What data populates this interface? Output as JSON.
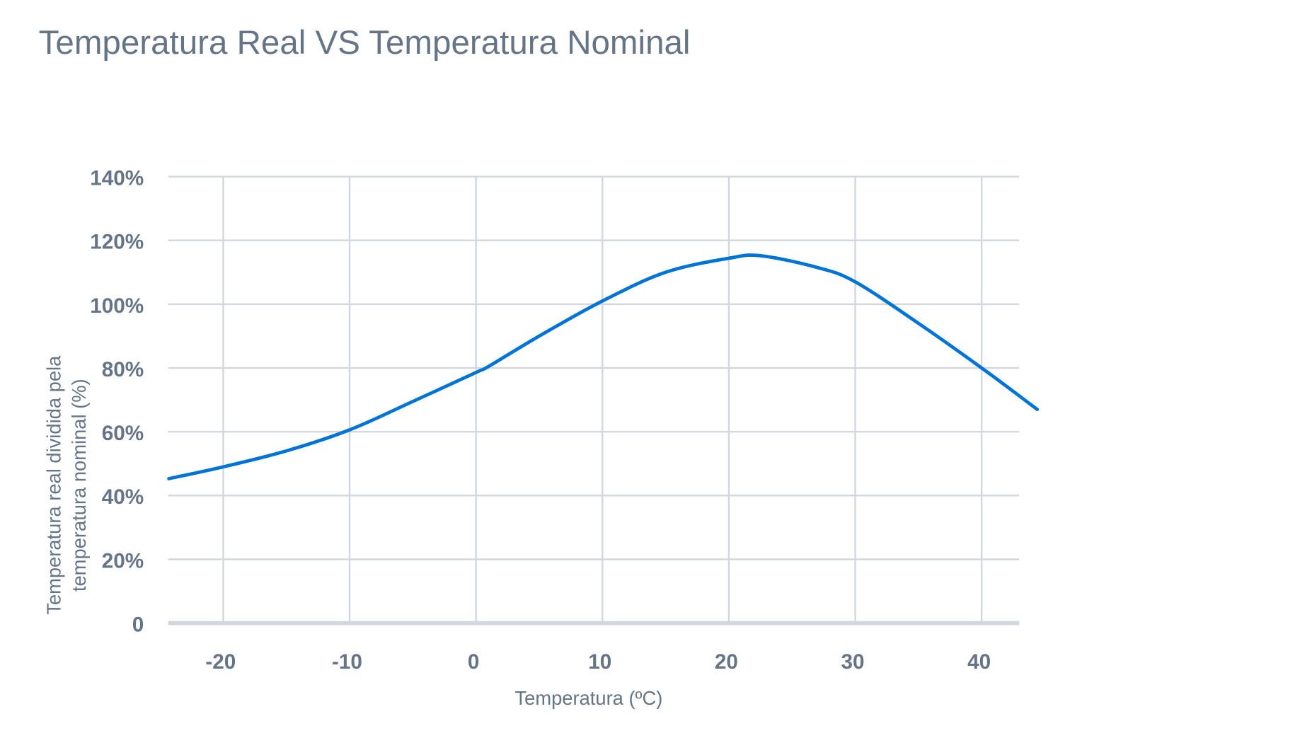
{
  "chart_data": {
    "type": "line",
    "title": "Temperatura Real VS Temperatura Nominal",
    "xlabel": "Temperatura (ºC)",
    "ylabel_lines": [
      "Temperatura real dividida pela",
      "temperatura nominal (%)"
    ],
    "xlim": [
      -24.3,
      43
    ],
    "ylim": [
      0,
      140
    ],
    "x_ticks": [
      -20,
      -10,
      0,
      10,
      20,
      30,
      40
    ],
    "x_tick_labels": [
      "-20",
      "-10",
      "0",
      "10",
      "20",
      "30",
      "40"
    ],
    "y_ticks": [
      0,
      20,
      40,
      60,
      80,
      100,
      120,
      140
    ],
    "y_tick_labels": [
      "0",
      "20%",
      "40%",
      "60%",
      "80%",
      "100%",
      "120%",
      "140%"
    ],
    "grid": true,
    "line_color": "#0073d6",
    "series": [
      {
        "x": [
          -24.3,
          -20,
          -15,
          -10,
          -5,
          0,
          1,
          5,
          10,
          15,
          20,
          22.5,
          27,
          30,
          35,
          40,
          44.4
        ],
        "y": [
          45.3,
          49,
          54,
          60.6,
          69.5,
          78.6,
          80.5,
          90,
          101,
          110,
          114.4,
          115.2,
          111.5,
          107,
          94,
          80,
          67
        ]
      }
    ]
  }
}
